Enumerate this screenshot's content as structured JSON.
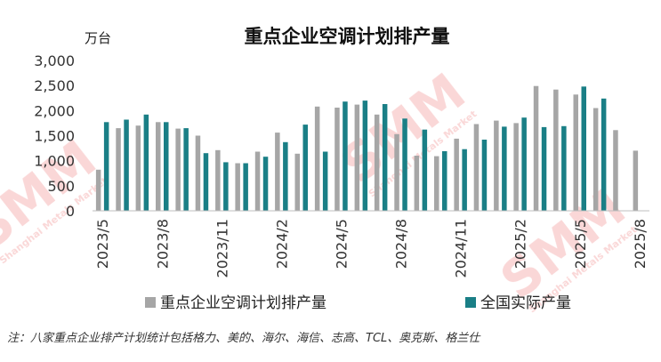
{
  "chart_data": {
    "type": "bar",
    "title": "重点企业空调计划排产量",
    "unit_label": "万台",
    "ylim": [
      0,
      3000
    ],
    "yticks": [
      "0",
      "500",
      "1,000",
      "1,500",
      "2,000",
      "2,500",
      "3,000"
    ],
    "ytick_values": [
      0,
      500,
      1000,
      1500,
      2000,
      2500,
      3000
    ],
    "x": [
      "2023/5",
      "2023/6",
      "2023/7",
      "2023/8",
      "2023/9",
      "2023/10",
      "2023/11",
      "2023/12",
      "2024/1",
      "2024/2",
      "2024/3",
      "2024/4",
      "2024/5",
      "2024/6",
      "2024/7",
      "2024/8",
      "2024/9",
      "2024/10",
      "2024/11",
      "2024/12",
      "2025/1",
      "2025/2",
      "2025/3",
      "2025/4",
      "2025/5",
      "2025/6",
      "2025/7",
      "2025/8"
    ],
    "x_labels_shown": [
      "2023/5",
      "2023/8",
      "2023/11",
      "2024/2",
      "2024/5",
      "2024/8",
      "2024/11",
      "2025/2",
      "2025/5",
      "2025/8"
    ],
    "series": [
      {
        "name": "重点企业空调计划排产量",
        "color": "#a6a6a6",
        "values": [
          820,
          1650,
          1700,
          1770,
          1640,
          1500,
          1210,
          950,
          1180,
          1560,
          1140,
          2080,
          2060,
          2120,
          1920,
          1530,
          1100,
          1090,
          1440,
          1730,
          1800,
          1750,
          2490,
          2420,
          2320,
          2050,
          1610,
          1200
        ]
      },
      {
        "name": "全国实际产量",
        "color": "#1a7f86",
        "values": [
          1770,
          1820,
          1920,
          1770,
          1650,
          1150,
          970,
          950,
          1080,
          1370,
          1720,
          1180,
          2180,
          2200,
          2130,
          1840,
          1620,
          1190,
          1230,
          1420,
          1680,
          1860,
          1670,
          1690,
          2480,
          2240,
          null,
          null
        ]
      }
    ],
    "legend_position": "bottom",
    "grid": false,
    "note": "注：八家重点企业排产计划统计包括格力、美的、海尔、海信、志高、TCL、奥克斯、格兰仕"
  },
  "watermark": {
    "logo_text": "SMM",
    "sub_text": "Shanghai Metals Market"
  }
}
